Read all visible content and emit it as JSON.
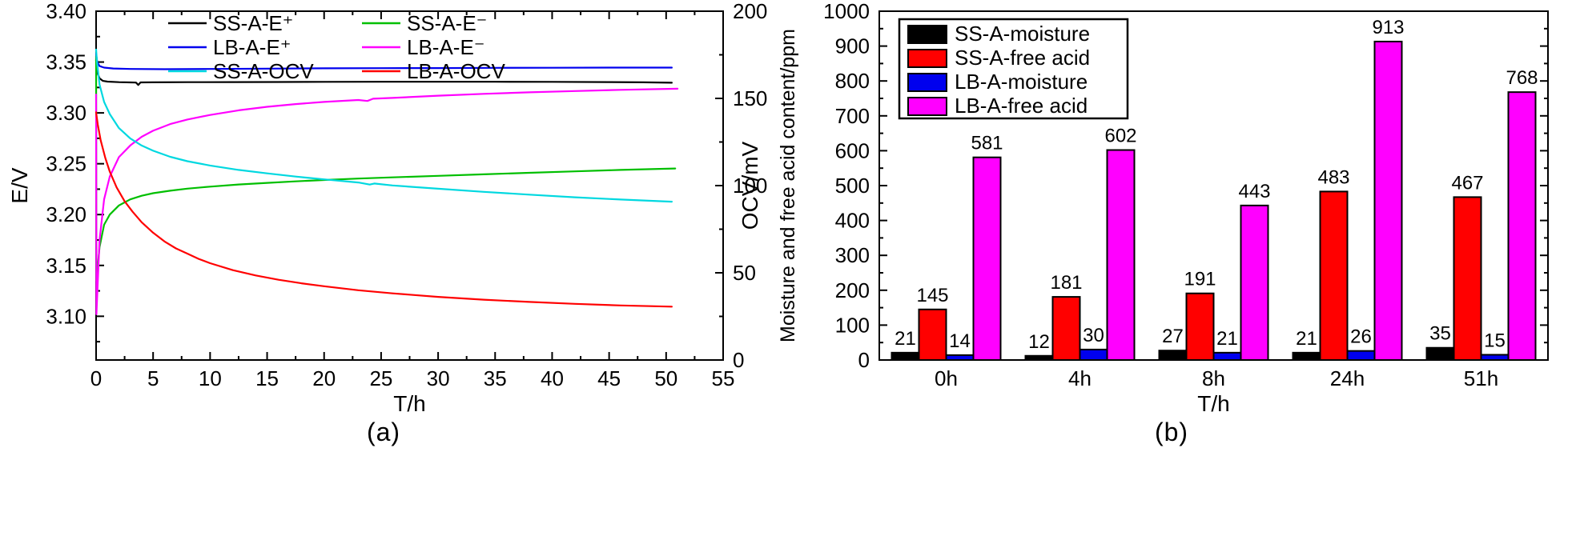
{
  "figure": {
    "captions": {
      "a": "(a)",
      "b": "(b)"
    }
  },
  "chart_data": [
    {
      "id": "a",
      "type": "line",
      "title": "",
      "xlabel": "T/h",
      "ylabel_left": "E/V",
      "ylabel_right": "OCV/mV",
      "xlim": [
        0,
        55
      ],
      "xticks": [
        0,
        5,
        10,
        15,
        20,
        25,
        30,
        35,
        40,
        45,
        50,
        55
      ],
      "x_minor_step": 2.5,
      "ylim_left": [
        3.057,
        3.4
      ],
      "yticks_left": [
        "3.10",
        "3.15",
        "3.20",
        "3.25",
        "3.30",
        "3.35",
        "3.40"
      ],
      "y_left_minor_step": 0.025,
      "ylim_right": [
        0,
        200
      ],
      "yticks_right": [
        "0",
        "50",
        "100",
        "150",
        "200"
      ],
      "y_right_minor_step": 25,
      "legend_position": "top-inside-two-columns",
      "series": [
        {
          "name": "SS-A-E-plus",
          "label": "SS-A-E⁺",
          "color": "#000000",
          "axis": "left",
          "points": [
            [
              0,
              3.352
            ],
            [
              0.1,
              3.34
            ],
            [
              0.3,
              3.334
            ],
            [
              0.6,
              3.3315
            ],
            [
              1,
              3.3308
            ],
            [
              2,
              3.3302
            ],
            [
              3,
              3.33
            ],
            [
              3.5,
              3.3298
            ],
            [
              3.7,
              3.3275
            ],
            [
              3.9,
              3.33
            ],
            [
              5,
              3.3301
            ],
            [
              8,
              3.3302
            ],
            [
              12,
              3.3303
            ],
            [
              16,
              3.3304
            ],
            [
              20,
              3.3305
            ],
            [
              25,
              3.3306
            ],
            [
              30,
              3.3306
            ],
            [
              35,
              3.3306
            ],
            [
              40,
              3.3305
            ],
            [
              45,
              3.3303
            ],
            [
              48,
              3.3301
            ],
            [
              50.5,
              3.3297
            ]
          ]
        },
        {
          "name": "SS-A-E-minus",
          "label": "SS-A-E⁻",
          "color": "#00bf00",
          "axis": "left",
          "points": [
            [
              0,
              3.356
            ],
            [
              0.03,
              3.135
            ],
            [
              0.3,
              3.168
            ],
            [
              0.7,
              3.19
            ],
            [
              1.2,
              3.2
            ],
            [
              2,
              3.209
            ],
            [
              3,
              3.215
            ],
            [
              4,
              3.2185
            ],
            [
              5,
              3.221
            ],
            [
              6.5,
              3.2235
            ],
            [
              8,
              3.2255
            ],
            [
              10,
              3.2275
            ],
            [
              12.5,
              3.2296
            ],
            [
              15,
              3.2312
            ],
            [
              17.5,
              3.2327
            ],
            [
              20,
              3.234
            ],
            [
              23,
              3.2354
            ],
            [
              26,
              3.2366
            ],
            [
              30,
              3.2381
            ],
            [
              34,
              3.2396
            ],
            [
              38,
              3.2411
            ],
            [
              42,
              3.2425
            ],
            [
              46,
              3.2439
            ],
            [
              50.8,
              3.2453
            ]
          ]
        },
        {
          "name": "LB-A-E-plus",
          "label": "LB-A-E⁺",
          "color": "#0000ee",
          "axis": "left",
          "points": [
            [
              0,
              3.358
            ],
            [
              0.1,
              3.35
            ],
            [
              0.3,
              3.346
            ],
            [
              0.7,
              3.3445
            ],
            [
              1.5,
              3.3437
            ],
            [
              3,
              3.3432
            ],
            [
              6,
              3.343
            ],
            [
              10,
              3.3432
            ],
            [
              15,
              3.3435
            ],
            [
              20,
              3.3438
            ],
            [
              25,
              3.344
            ],
            [
              30,
              3.3441
            ],
            [
              35,
              3.3443
            ],
            [
              40,
              3.3444
            ],
            [
              45,
              3.3445
            ],
            [
              50.5,
              3.3445
            ]
          ]
        },
        {
          "name": "LB-A-E-minus",
          "label": "LB-A-E⁻",
          "color": "#ff00ff",
          "axis": "left",
          "points": [
            [
              0,
              3.318
            ],
            [
              0.03,
              3.102
            ],
            [
              0.3,
              3.175
            ],
            [
              0.7,
              3.215
            ],
            [
              1.2,
              3.2375
            ],
            [
              2,
              3.2565
            ],
            [
              3,
              3.268
            ],
            [
              4,
              3.2765
            ],
            [
              5,
              3.2825
            ],
            [
              6.5,
              3.289
            ],
            [
              8,
              3.2935
            ],
            [
              10,
              3.298
            ],
            [
              12.5,
              3.3025
            ],
            [
              15,
              3.306
            ],
            [
              17.5,
              3.3087
            ],
            [
              20,
              3.3108
            ],
            [
              23,
              3.3127
            ],
            [
              23.8,
              3.3117
            ],
            [
              24.3,
              3.3139
            ],
            [
              26,
              3.3147
            ],
            [
              30,
              3.3169
            ],
            [
              34,
              3.3187
            ],
            [
              38,
              3.3202
            ],
            [
              42,
              3.3215
            ],
            [
              46,
              3.3227
            ],
            [
              51,
              3.3238
            ]
          ]
        },
        {
          "name": "SS-A-OCV",
          "label": "SS-A-OCV",
          "color": "#00d8e0",
          "axis": "right",
          "points": [
            [
              0,
              178
            ],
            [
              0.08,
              171
            ],
            [
              0.3,
              158
            ],
            [
              0.7,
              148
            ],
            [
              1.2,
              141
            ],
            [
              2,
              133
            ],
            [
              3,
              127
            ],
            [
              4,
              123
            ],
            [
              5,
              120
            ],
            [
              6.5,
              116.5
            ],
            [
              8,
              114
            ],
            [
              10,
              111.5
            ],
            [
              12.5,
              109
            ],
            [
              15,
              107
            ],
            [
              17.5,
              105.2
            ],
            [
              20,
              103.6
            ],
            [
              23,
              101.8
            ],
            [
              24,
              100.6
            ],
            [
              24.4,
              101.2
            ],
            [
              26,
              100.1
            ],
            [
              30,
              98.2
            ],
            [
              34,
              96.4
            ],
            [
              38,
              94.8
            ],
            [
              42,
              93.3
            ],
            [
              46,
              92
            ],
            [
              50.5,
              90.8
            ]
          ]
        },
        {
          "name": "LB-A-OCV",
          "label": "LB-A-OCV",
          "color": "#ff0000",
          "axis": "right",
          "points": [
            [
              0,
              142
            ],
            [
              0.15,
              135
            ],
            [
              0.4,
              126
            ],
            [
              0.8,
              116
            ],
            [
              1.2,
              108
            ],
            [
              1.8,
              99
            ],
            [
              2.5,
              91
            ],
            [
              3.2,
              85
            ],
            [
              4,
              79
            ],
            [
              5,
              73
            ],
            [
              6,
              68
            ],
            [
              7,
              64
            ],
            [
              8,
              61
            ],
            [
              9,
              58
            ],
            [
              10,
              55.5
            ],
            [
              12,
              51.5
            ],
            [
              14,
              48.5
            ],
            [
              16,
              46
            ],
            [
              18,
              44
            ],
            [
              20,
              42.3
            ],
            [
              23,
              40
            ],
            [
              26,
              38.2
            ],
            [
              30,
              36.2
            ],
            [
              34,
              34.6
            ],
            [
              38,
              33.3
            ],
            [
              42,
              32.2
            ],
            [
              46,
              31.3
            ],
            [
              50.5,
              30.6
            ]
          ]
        }
      ]
    },
    {
      "id": "b",
      "type": "bar",
      "title": "",
      "xlabel": "T/h",
      "ylabel": "Moisture and free acid content/ppm",
      "categories": [
        "0h",
        "4h",
        "8h",
        "24h",
        "51h"
      ],
      "ylim": [
        0,
        1000
      ],
      "yticks": [
        "0",
        "100",
        "200",
        "300",
        "400",
        "500",
        "600",
        "700",
        "800",
        "900",
        "1000"
      ],
      "y_minor_step": 50,
      "legend_position": "top-left-boxed",
      "series": [
        {
          "name": "SS-A-moisture",
          "label": "SS-A-moisture",
          "color": "#000000",
          "values": [
            21,
            12,
            27,
            21,
            35
          ]
        },
        {
          "name": "SS-A-free-acid",
          "label": "SS-A-free acid",
          "color": "#ff0000",
          "values": [
            145,
            181,
            191,
            483,
            467
          ]
        },
        {
          "name": "LB-A-moisture",
          "label": "LB-A-moisture",
          "color": "#0000ee",
          "values": [
            14,
            30,
            21,
            26,
            15
          ]
        },
        {
          "name": "LB-A-free-acid",
          "label": "LB-A-free acid",
          "color": "#ff00ff",
          "values": [
            581,
            602,
            443,
            913,
            768
          ]
        }
      ]
    }
  ]
}
